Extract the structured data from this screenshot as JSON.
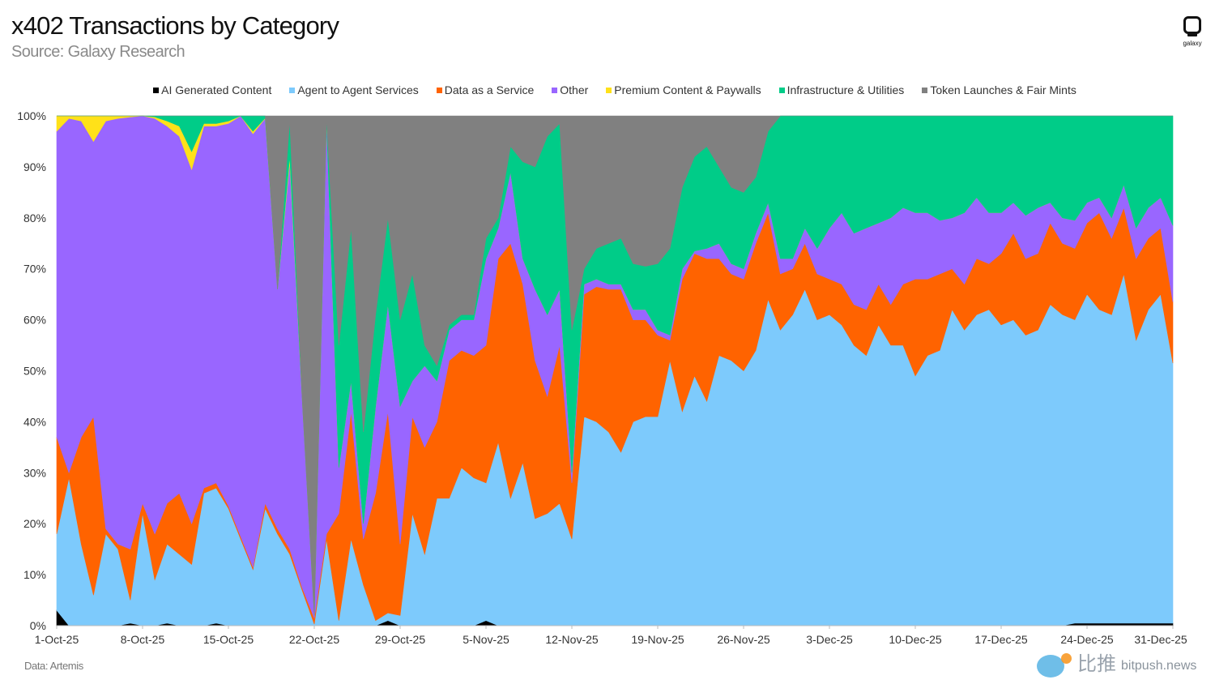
{
  "title": "x402 Transactions by Category",
  "subtitle": "Source: Galaxy Research",
  "logo_text": "galaxy",
  "footnote": "Data: Artemis",
  "watermark": {
    "cn": "比推",
    "en": "bitpush.news"
  },
  "chart_data": {
    "type": "area",
    "stacked": "100%",
    "title": "x402 Transactions by Category",
    "xlabel": "",
    "ylabel": "",
    "ylim": [
      0,
      100
    ],
    "y_ticks": [
      "0%",
      "10%",
      "20%",
      "30%",
      "40%",
      "50%",
      "60%",
      "70%",
      "80%",
      "90%",
      "100%"
    ],
    "x_ticks": [
      "1-Oct-25",
      "8-Oct-25",
      "15-Oct-25",
      "22-Oct-25",
      "29-Oct-25",
      "5-Nov-25",
      "12-Nov-25",
      "19-Nov-25",
      "26-Nov-25",
      "3-Dec-25",
      "10-Dec-25",
      "17-Dec-25",
      "24-Dec-25",
      "31-Dec-25"
    ],
    "grid": false,
    "legend_position": "top",
    "x": [
      "1-Oct-25",
      "2-Oct-25",
      "3-Oct-25",
      "4-Oct-25",
      "5-Oct-25",
      "6-Oct-25",
      "7-Oct-25",
      "8-Oct-25",
      "9-Oct-25",
      "10-Oct-25",
      "11-Oct-25",
      "12-Oct-25",
      "13-Oct-25",
      "14-Oct-25",
      "15-Oct-25",
      "16-Oct-25",
      "17-Oct-25",
      "18-Oct-25",
      "19-Oct-25",
      "20-Oct-25",
      "21-Oct-25",
      "22-Oct-25",
      "23-Oct-25",
      "24-Oct-25",
      "25-Oct-25",
      "26-Oct-25",
      "27-Oct-25",
      "28-Oct-25",
      "29-Oct-25",
      "30-Oct-25",
      "31-Oct-25",
      "1-Nov-25",
      "2-Nov-25",
      "3-Nov-25",
      "4-Nov-25",
      "5-Nov-25",
      "6-Nov-25",
      "7-Nov-25",
      "8-Nov-25",
      "9-Nov-25",
      "10-Nov-25",
      "11-Nov-25",
      "12-Nov-25",
      "13-Nov-25",
      "14-Nov-25",
      "15-Nov-25",
      "16-Nov-25",
      "17-Nov-25",
      "18-Nov-25",
      "19-Nov-25",
      "20-Nov-25",
      "21-Nov-25",
      "22-Nov-25",
      "23-Nov-25",
      "24-Nov-25",
      "25-Nov-25",
      "26-Nov-25",
      "27-Nov-25",
      "28-Nov-25",
      "29-Nov-25",
      "30-Nov-25",
      "1-Dec-25",
      "2-Dec-25",
      "3-Dec-25",
      "4-Dec-25",
      "5-Dec-25",
      "6-Dec-25",
      "7-Dec-25",
      "8-Dec-25",
      "9-Dec-25",
      "10-Dec-25",
      "11-Dec-25",
      "12-Dec-25",
      "13-Dec-25",
      "14-Dec-25",
      "15-Dec-25",
      "16-Dec-25",
      "17-Dec-25",
      "18-Dec-25",
      "19-Dec-25",
      "20-Dec-25",
      "21-Dec-25",
      "22-Dec-25",
      "23-Dec-25",
      "24-Dec-25",
      "25-Dec-25",
      "26-Dec-25",
      "27-Dec-25",
      "28-Dec-25",
      "29-Dec-25",
      "30-Dec-25",
      "31-Dec-25"
    ],
    "series": [
      {
        "name": "AI Generated Content",
        "color": "#000000",
        "values": [
          3,
          0,
          0,
          0,
          0,
          0,
          0.5,
          0,
          0,
          0.5,
          0,
          0,
          0,
          0.5,
          0,
          0,
          0,
          0,
          0,
          0,
          0,
          0,
          0,
          0,
          0,
          0,
          0,
          1,
          0,
          0,
          0,
          0,
          0,
          0,
          0,
          1,
          0,
          0,
          0,
          0,
          0,
          0,
          0,
          0,
          0,
          0,
          0,
          0,
          0,
          0,
          0,
          0,
          0,
          0,
          0,
          0,
          0,
          0,
          0,
          0,
          0,
          0,
          0,
          0,
          0,
          0,
          0,
          0,
          0,
          0,
          0,
          0,
          0,
          0,
          0,
          0,
          0,
          0,
          0,
          0,
          0,
          0,
          0,
          0.5,
          0.5,
          0.5,
          0.5,
          0.5,
          0.5,
          0.5,
          0.5,
          0.5
        ]
      },
      {
        "name": "Agent to Agent Services",
        "color": "#7dcafc",
        "values": [
          15,
          29,
          16,
          6,
          18,
          15,
          4.5,
          22,
          9,
          15.5,
          14,
          12,
          26,
          26.5,
          23,
          17,
          11,
          23,
          18,
          14,
          7,
          0.3,
          17,
          1,
          17,
          8,
          1,
          1.5,
          2,
          22,
          14,
          25,
          25,
          31,
          29,
          27,
          36,
          25,
          32,
          21,
          22,
          24,
          17,
          41,
          40,
          38,
          34,
          40,
          41,
          41,
          52,
          42,
          49,
          44,
          53,
          52,
          50,
          54,
          64,
          58,
          61,
          66,
          60,
          61,
          59,
          55,
          53,
          59,
          55,
          55,
          49,
          53,
          54,
          62,
          58,
          61,
          62,
          59,
          60,
          57,
          58,
          63,
          61,
          59.5,
          64.5,
          61.5,
          60.5,
          68.5,
          55.5,
          61.5,
          64.5,
          51
        ]
      },
      {
        "name": "Data as a Service",
        "color": "#ff6300",
        "values": [
          19,
          1,
          21,
          35,
          1,
          1,
          10,
          2,
          9,
          8,
          12,
          8,
          1,
          1,
          0.5,
          0.5,
          0.5,
          1,
          1,
          1,
          0.5,
          1.2,
          1,
          21,
          25,
          9,
          25,
          39.5,
          14,
          19,
          21,
          15,
          27,
          23,
          24,
          27,
          36,
          50,
          35,
          31,
          23,
          31,
          11,
          24,
          26.5,
          28,
          32,
          20,
          19,
          16,
          4,
          26,
          24,
          28,
          19,
          17,
          18,
          21,
          17,
          11,
          9,
          9,
          9,
          7,
          8,
          8,
          9,
          8,
          8,
          12,
          19,
          15,
          15,
          8,
          9,
          11,
          9,
          14,
          17,
          15,
          15,
          16,
          14,
          14,
          14,
          19,
          15,
          13,
          16,
          14,
          13,
          12
        ]
      },
      {
        "name": "Other",
        "color": "#9966ff",
        "values": [
          60,
          69.5,
          62,
          54,
          80,
          83.5,
          84.8,
          76,
          81.5,
          74,
          70,
          69.5,
          71,
          70,
          75,
          82.5,
          85,
          75.5,
          47,
          76,
          37.5,
          0.5,
          81,
          9,
          6,
          3,
          17,
          21,
          27,
          7,
          16,
          8,
          6,
          6,
          7,
          17,
          6,
          14,
          5,
          14,
          16,
          11,
          2,
          2,
          1.5,
          1,
          1,
          2,
          2,
          1,
          1,
          2,
          0.5,
          2,
          3,
          2,
          2,
          2,
          2,
          3,
          2,
          3,
          5,
          10,
          14,
          14,
          16,
          12,
          17,
          15,
          13,
          13,
          10.5,
          10,
          14,
          12,
          10,
          8,
          6,
          8.5,
          9,
          4,
          5,
          5.5,
          4,
          3,
          4,
          4.5,
          6,
          6,
          6,
          15
        ]
      },
      {
        "name": "Premium Content & Paywalls",
        "color": "#ffe119",
        "values": [
          3,
          0.5,
          1,
          5,
          1,
          0.5,
          0.2,
          0,
          0.3,
          1,
          2,
          3.5,
          0.5,
          0.5,
          0.5,
          0,
          0.5,
          0.1,
          0,
          1,
          0,
          0,
          0,
          0,
          0,
          0,
          0,
          0,
          0,
          0,
          0,
          0,
          0,
          0,
          0,
          0,
          0,
          0,
          0,
          0,
          0,
          0,
          0,
          0,
          0,
          0,
          0,
          0,
          0,
          0,
          0,
          0,
          0,
          0,
          0,
          0,
          0,
          0,
          0,
          0,
          0,
          0,
          0,
          0,
          0,
          0,
          0,
          0,
          0,
          0,
          0,
          0,
          0,
          0,
          0,
          0,
          0,
          0,
          0,
          0,
          0,
          0,
          0,
          0,
          0,
          0,
          0,
          0,
          0,
          0,
          0,
          0
        ]
      },
      {
        "name": "Infrastructure & Utilities",
        "color": "#00cc88",
        "values": [
          0,
          0,
          0,
          0,
          0,
          0,
          0,
          0,
          0.2,
          1,
          2,
          7,
          1.5,
          1.5,
          1,
          0,
          3,
          0.4,
          0,
          7,
          0,
          0,
          0.5,
          24,
          30,
          18,
          18,
          17,
          17,
          21,
          4,
          3,
          1,
          1,
          1,
          4,
          2,
          5,
          19,
          24,
          35,
          32.5,
          28,
          3,
          6,
          8,
          9,
          9,
          8.5,
          13,
          17,
          16,
          18.5,
          20,
          15,
          15,
          15,
          11,
          14,
          28,
          28,
          22,
          26,
          22,
          19,
          23,
          22,
          21,
          20,
          18,
          19,
          19,
          20.5,
          20,
          19,
          16,
          19,
          19,
          17,
          19.5,
          18,
          17,
          20,
          20.5,
          17,
          16,
          20,
          13.5,
          22,
          18,
          16,
          21.5
        ]
      },
      {
        "name": "Token Launches & Fair Mints",
        "color": "#808080",
        "values": [
          0,
          0,
          0,
          0,
          0,
          0,
          0,
          0,
          0,
          0,
          0,
          0,
          0,
          0,
          0,
          0,
          0,
          0,
          34,
          1,
          55,
          98,
          0.5,
          45,
          22,
          62,
          39,
          20,
          40,
          31,
          45,
          49,
          41,
          39,
          39,
          24,
          20,
          6,
          9,
          10,
          4,
          1.5,
          42,
          30,
          26,
          25,
          24,
          29,
          29.5,
          29,
          26,
          14,
          8,
          6,
          10,
          14,
          15,
          12,
          3,
          0,
          0,
          0,
          0,
          0,
          0,
          0,
          0,
          0,
          0,
          0,
          0,
          0,
          0,
          0,
          0,
          0,
          0,
          0,
          0,
          0,
          0,
          0,
          0,
          0,
          0,
          0,
          0,
          0,
          0,
          0,
          0,
          0
        ]
      }
    ]
  }
}
